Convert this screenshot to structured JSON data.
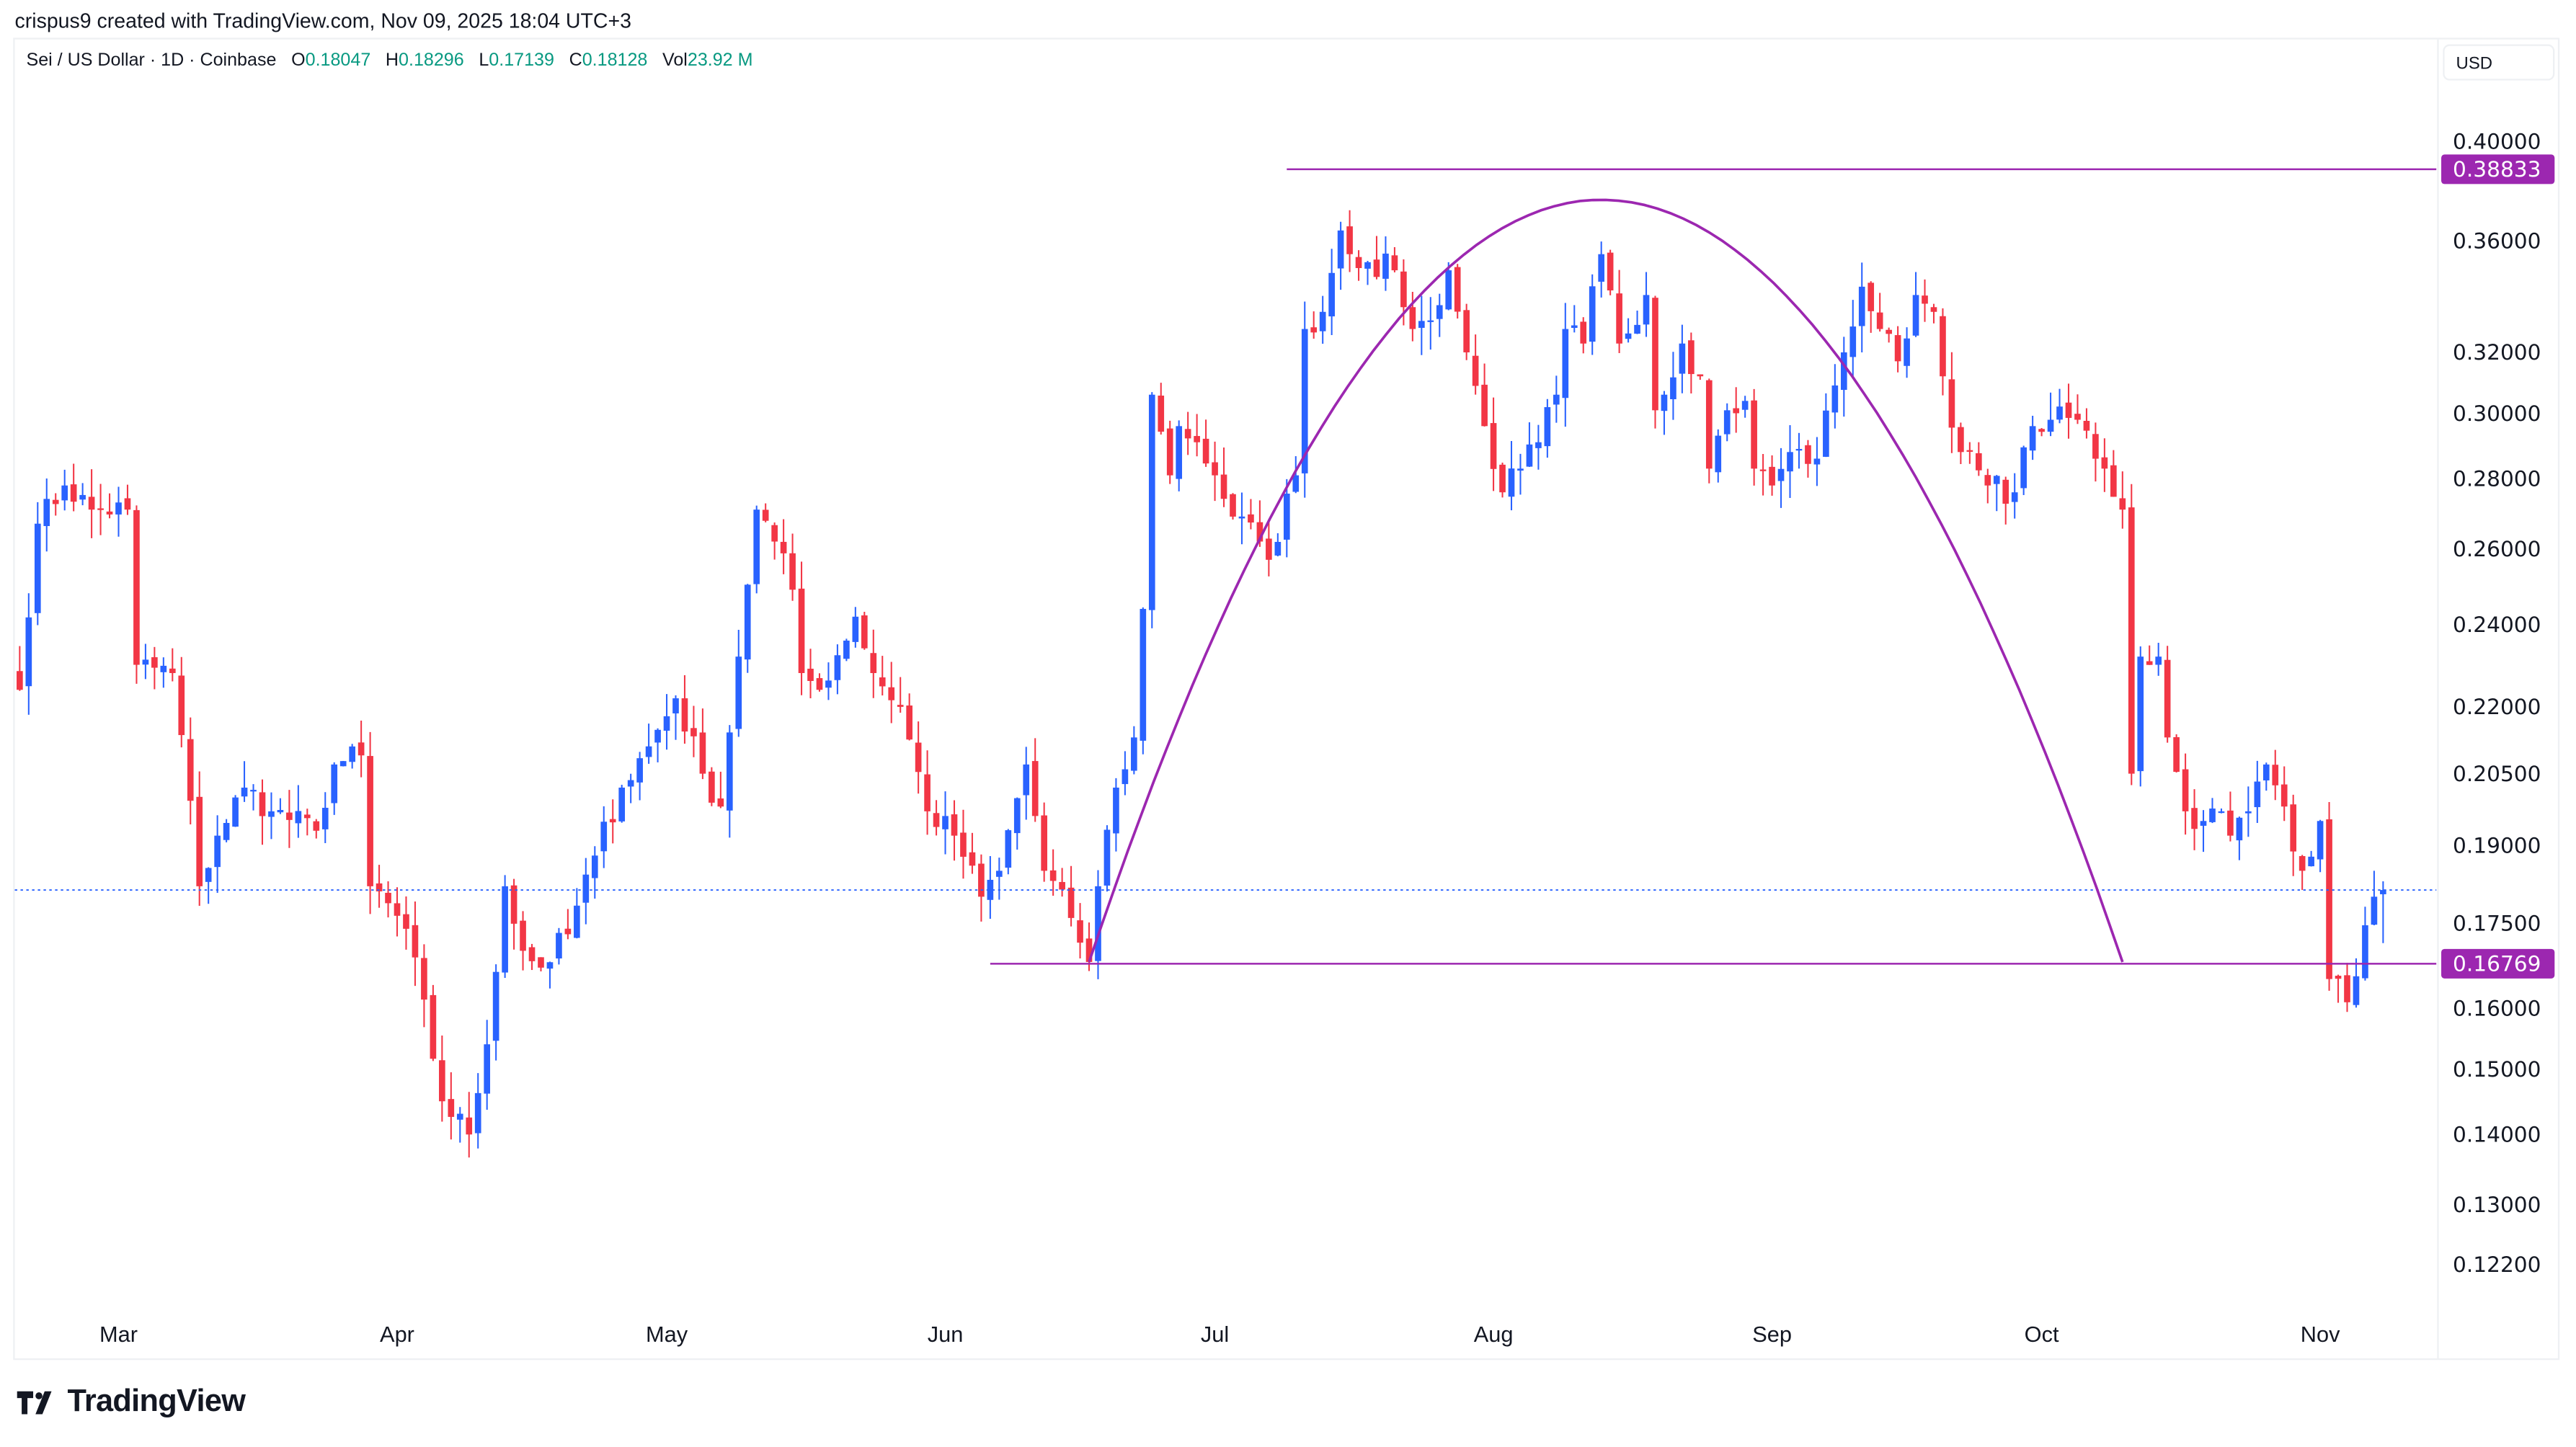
{
  "credit": "crispus9 created with TradingView.com, Nov 09, 2025 18:04 UTC+3",
  "legend": {
    "symbol": "Sei / US Dollar · 1D · Coinbase",
    "o_label": "O",
    "o": "0.18047",
    "h_label": "H",
    "h": "0.18296",
    "l_label": "L",
    "l": "0.17139",
    "c_label": "C",
    "c": "0.18128",
    "vol_label": "Vol",
    "vol": "23.92 M"
  },
  "currency": "USD",
  "logo_text": "TradingView",
  "colors": {
    "up": "#2962ff",
    "down": "#f23645",
    "annotation": "#9c27b0",
    "price_line": "#2962ff"
  },
  "chart_data": {
    "type": "candlestick",
    "title": "Sei / US Dollar · 1D · Coinbase",
    "y_scale": "log",
    "ylim": [
      0.117,
      0.43
    ],
    "start_date": "2025-02-18",
    "end_date": "2025-11-09",
    "close_waypoints_day_price": [
      [
        0,
        0.224
      ],
      [
        2,
        0.267
      ],
      [
        5,
        0.278
      ],
      [
        8,
        0.271
      ],
      [
        12,
        0.271
      ],
      [
        13,
        0.23
      ],
      [
        17,
        0.228
      ],
      [
        20,
        0.182
      ],
      [
        22,
        0.192
      ],
      [
        25,
        0.202
      ],
      [
        28,
        0.197
      ],
      [
        33,
        0.193
      ],
      [
        35,
        0.207
      ],
      [
        38,
        0.209
      ],
      [
        39,
        0.182
      ],
      [
        43,
        0.174
      ],
      [
        47,
        0.145
      ],
      [
        50,
        0.14
      ],
      [
        52,
        0.154
      ],
      [
        54,
        0.182
      ],
      [
        56,
        0.17
      ],
      [
        58,
        0.167
      ],
      [
        61,
        0.173
      ],
      [
        64,
        0.188
      ],
      [
        67,
        0.202
      ],
      [
        70,
        0.211
      ],
      [
        73,
        0.222
      ],
      [
        76,
        0.205
      ],
      [
        78,
        0.198
      ],
      [
        80,
        0.232
      ],
      [
        82,
        0.271
      ],
      [
        84,
        0.262
      ],
      [
        86,
        0.249
      ],
      [
        87,
        0.228
      ],
      [
        89,
        0.224
      ],
      [
        93,
        0.242
      ],
      [
        95,
        0.228
      ],
      [
        98,
        0.22
      ],
      [
        101,
        0.197
      ],
      [
        104,
        0.192
      ],
      [
        107,
        0.18
      ],
      [
        109,
        0.185
      ],
      [
        112,
        0.207
      ],
      [
        114,
        0.185
      ],
      [
        117,
        0.176
      ],
      [
        119,
        0.168
      ],
      [
        120,
        0.182
      ],
      [
        122,
        0.202
      ],
      [
        124,
        0.213
      ],
      [
        125,
        0.244
      ],
      [
        126,
        0.306
      ],
      [
        128,
        0.281
      ],
      [
        129,
        0.296
      ],
      [
        131,
        0.291
      ],
      [
        133,
        0.281
      ],
      [
        135,
        0.269
      ],
      [
        138,
        0.262
      ],
      [
        139,
        0.257
      ],
      [
        142,
        0.281
      ],
      [
        143,
        0.328
      ],
      [
        145,
        0.334
      ],
      [
        147,
        0.364
      ],
      [
        148,
        0.355
      ],
      [
        150,
        0.352
      ],
      [
        153,
        0.349
      ],
      [
        155,
        0.328
      ],
      [
        157,
        0.331
      ],
      [
        159,
        0.349
      ],
      [
        161,
        0.32
      ],
      [
        163,
        0.296
      ],
      [
        165,
        0.276
      ],
      [
        167,
        0.283
      ],
      [
        169,
        0.291
      ],
      [
        171,
        0.306
      ],
      [
        172,
        0.328
      ],
      [
        174,
        0.323
      ],
      [
        176,
        0.355
      ],
      [
        178,
        0.323
      ],
      [
        181,
        0.34
      ],
      [
        182,
        0.301
      ],
      [
        185,
        0.323
      ],
      [
        187,
        0.312
      ],
      [
        188,
        0.283
      ],
      [
        190,
        0.301
      ],
      [
        192,
        0.304
      ],
      [
        193,
        0.283
      ],
      [
        195,
        0.278
      ],
      [
        197,
        0.288
      ],
      [
        200,
        0.286
      ],
      [
        202,
        0.309
      ],
      [
        203,
        0.32
      ],
      [
        205,
        0.343
      ],
      [
        207,
        0.328
      ],
      [
        209,
        0.317
      ],
      [
        211,
        0.34
      ],
      [
        213,
        0.334
      ],
      [
        214,
        0.312
      ],
      [
        216,
        0.288
      ],
      [
        219,
        0.278
      ],
      [
        222,
        0.276
      ],
      [
        224,
        0.296
      ],
      [
        226,
        0.298
      ],
      [
        229,
        0.298
      ],
      [
        232,
        0.283
      ],
      [
        234,
        0.271
      ],
      [
        235,
        0.205
      ],
      [
        236,
        0.232
      ],
      [
        238,
        0.232
      ],
      [
        239,
        0.213
      ],
      [
        241,
        0.197
      ],
      [
        243,
        0.195
      ],
      [
        245,
        0.197
      ],
      [
        246,
        0.192
      ],
      [
        248,
        0.197
      ],
      [
        250,
        0.207
      ],
      [
        252,
        0.198
      ],
      [
        254,
        0.185
      ],
      [
        256,
        0.195
      ],
      [
        257,
        0.165
      ],
      [
        259,
        0.161
      ],
      [
        262,
        0.18
      ],
      [
        263,
        0.18128
      ]
    ],
    "last_candle": {
      "open": 0.18047,
      "high": 0.18296,
      "low": 0.17139,
      "close": 0.18128
    },
    "current_price": 0.18128,
    "x_ticks": [
      {
        "label": "Mar",
        "day": 11
      },
      {
        "label": "Apr",
        "day": 42
      },
      {
        "label": "May",
        "day": 72
      },
      {
        "label": "Jun",
        "day": 103
      },
      {
        "label": "Jul",
        "day": 133
      },
      {
        "label": "Aug",
        "day": 164
      },
      {
        "label": "Sep",
        "day": 195
      },
      {
        "label": "Oct",
        "day": 225
      },
      {
        "label": "Nov",
        "day": 256
      }
    ],
    "y_ticks": [
      "0.40000",
      "0.36000",
      "0.32000",
      "0.30000",
      "0.28000",
      "0.26000",
      "0.24000",
      "0.22000",
      "0.20500",
      "0.19000",
      "0.17500",
      "0.16000",
      "0.15000",
      "0.14000",
      "0.13000",
      "0.12200"
    ],
    "annotations": {
      "resistance": {
        "price": 0.38833,
        "label": "0.38833",
        "from_day": 141
      },
      "support": {
        "price": 0.16769,
        "label": "0.16769",
        "from_day": 108
      },
      "rounded_top_arc": {
        "start": [
          119,
          0.168
        ],
        "apex": [
          176,
          0.376
        ],
        "end": [
          234,
          0.168
        ]
      }
    },
    "grid": false
  }
}
